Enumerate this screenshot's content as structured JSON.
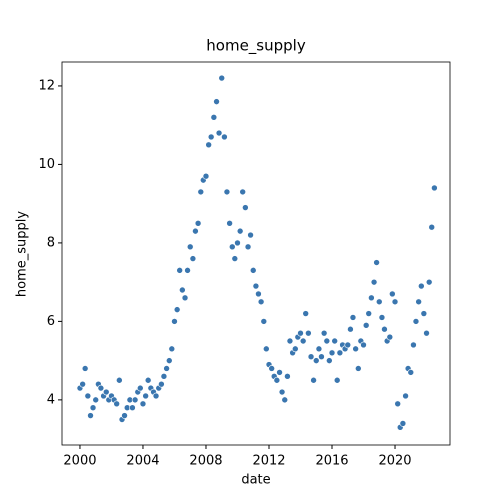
{
  "chart_data": {
    "type": "scatter",
    "title": "home_supply",
    "x_label": "date",
    "y_label": "home_supply",
    "color": "#3a76af",
    "xlim": [
      1998.86,
      2023.49
    ],
    "ylim": [
      2.85,
      12.61
    ],
    "xticks": [
      2000,
      2004,
      2008,
      2012,
      2016,
      2020
    ],
    "yticks": [
      4,
      6,
      8,
      10,
      12
    ],
    "x": [
      2000,
      2000.17,
      2000.33,
      2000.5,
      2000.67,
      2000.83,
      2001,
      2001.17,
      2001.33,
      2001.5,
      2001.67,
      2001.83,
      2002,
      2002.17,
      2002.33,
      2002.5,
      2002.67,
      2002.83,
      2003,
      2003.17,
      2003.33,
      2003.5,
      2003.67,
      2003.83,
      2004,
      2004.17,
      2004.33,
      2004.5,
      2004.67,
      2004.83,
      2005,
      2005.17,
      2005.33,
      2005.5,
      2005.67,
      2005.83,
      2006,
      2006.17,
      2006.33,
      2006.5,
      2006.67,
      2006.83,
      2007,
      2007.17,
      2007.33,
      2007.5,
      2007.67,
      2007.83,
      2008,
      2008.17,
      2008.33,
      2008.5,
      2008.67,
      2008.83,
      2009,
      2009.17,
      2009.33,
      2009.5,
      2009.67,
      2009.83,
      2010,
      2010.17,
      2010.33,
      2010.5,
      2010.67,
      2010.83,
      2011,
      2011.17,
      2011.33,
      2011.5,
      2011.67,
      2011.83,
      2012,
      2012.17,
      2012.33,
      2012.5,
      2012.67,
      2012.83,
      2013,
      2013.17,
      2013.33,
      2013.5,
      2013.67,
      2013.83,
      2014,
      2014.17,
      2014.33,
      2014.5,
      2014.67,
      2014.83,
      2015,
      2015.17,
      2015.33,
      2015.5,
      2015.67,
      2015.83,
      2016,
      2016.17,
      2016.33,
      2016.5,
      2016.67,
      2016.83,
      2017,
      2017.17,
      2017.33,
      2017.5,
      2017.67,
      2017.83,
      2018,
      2018.17,
      2018.33,
      2018.5,
      2018.67,
      2018.83,
      2019,
      2019.17,
      2019.33,
      2019.5,
      2019.67,
      2019.83,
      2020,
      2020.17,
      2020.33,
      2020.5,
      2020.67,
      2020.83,
      2021,
      2021.17,
      2021.33,
      2021.5,
      2021.67,
      2021.83,
      2022,
      2022.17,
      2022.33,
      2022.5
    ],
    "values": [
      4.3,
      4.4,
      4.8,
      4.1,
      3.6,
      3.8,
      4.0,
      4.4,
      4.3,
      4.1,
      4.2,
      4.0,
      4.1,
      4.0,
      3.9,
      4.5,
      3.5,
      3.6,
      3.8,
      4.0,
      3.8,
      4.0,
      4.2,
      4.3,
      3.9,
      4.1,
      4.5,
      4.3,
      4.2,
      4.1,
      4.3,
      4.4,
      4.6,
      4.8,
      5.0,
      5.3,
      6.0,
      6.3,
      7.3,
      6.8,
      6.6,
      7.3,
      7.9,
      7.6,
      8.3,
      8.5,
      9.3,
      9.6,
      9.7,
      10.5,
      10.7,
      11.2,
      11.6,
      10.8,
      12.2,
      10.7,
      9.3,
      8.5,
      7.9,
      7.6,
      8.0,
      8.3,
      9.3,
      8.9,
      7.9,
      8.2,
      7.3,
      6.9,
      6.7,
      6.5,
      6.0,
      5.3,
      4.9,
      4.8,
      4.6,
      4.5,
      4.7,
      4.2,
      4.0,
      4.6,
      5.5,
      5.2,
      5.3,
      5.6,
      5.7,
      5.5,
      6.2,
      5.7,
      5.1,
      4.5,
      5.0,
      5.3,
      5.1,
      5.7,
      5.5,
      5.0,
      5.2,
      5.5,
      4.5,
      5.2,
      5.4,
      5.3,
      5.4,
      5.8,
      6.1,
      5.3,
      4.8,
      5.5,
      5.4,
      5.9,
      6.2,
      6.6,
      7.0,
      7.5,
      6.5,
      6.1,
      5.8,
      5.5,
      5.6,
      6.7,
      6.5,
      3.9,
      3.3,
      3.4,
      4.1,
      4.8,
      4.7,
      5.4,
      6.0,
      6.5,
      6.9,
      6.2,
      5.7,
      7.0,
      8.4,
      9.4
    ]
  }
}
